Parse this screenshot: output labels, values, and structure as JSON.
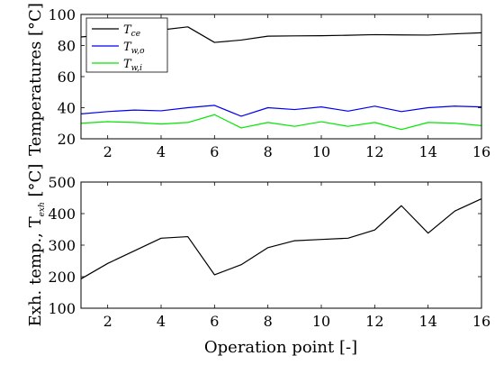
{
  "chart_data": [
    {
      "type": "line",
      "x": [
        1,
        2,
        3,
        4,
        5,
        6,
        7,
        8,
        9,
        10,
        11,
        12,
        13,
        14,
        15,
        16
      ],
      "xlim": [
        1,
        16
      ],
      "ylim": [
        20,
        100
      ],
      "xticks": [
        2,
        4,
        6,
        8,
        10,
        12,
        14,
        16
      ],
      "yticks": [
        20,
        40,
        60,
        80,
        100
      ],
      "ylabel": "Temperatures [°C]",
      "legend_position": "top-left",
      "grid": false,
      "series": [
        {
          "name": "T",
          "sub": "ce",
          "color": "#000000",
          "values": [
            85.5,
            87.0,
            88.5,
            90.0,
            92.0,
            82.0,
            83.5,
            86.0,
            86.2,
            86.3,
            86.6,
            87.0,
            86.8,
            86.7,
            87.5,
            88.2
          ]
        },
        {
          "name": "T",
          "sub": "w,o",
          "color": "#0000ee",
          "values": [
            36.0,
            37.5,
            38.5,
            38.0,
            40.0,
            41.5,
            34.5,
            40.0,
            38.8,
            40.5,
            37.8,
            41.0,
            37.5,
            40.0,
            41.0,
            40.5
          ]
        },
        {
          "name": "T",
          "sub": "w,i",
          "color": "#00e600",
          "values": [
            30.0,
            31.0,
            30.5,
            29.5,
            30.5,
            35.5,
            27.0,
            30.5,
            28.0,
            31.0,
            28.0,
            30.5,
            26.0,
            30.5,
            30.0,
            28.5
          ]
        }
      ]
    },
    {
      "type": "line",
      "x": [
        1,
        2,
        3,
        4,
        5,
        6,
        7,
        8,
        9,
        10,
        11,
        12,
        13,
        14,
        15,
        16
      ],
      "xlim": [
        1,
        16
      ],
      "ylim": [
        100,
        500
      ],
      "xticks": [
        2,
        4,
        6,
        8,
        10,
        12,
        14,
        16
      ],
      "yticks": [
        100,
        200,
        300,
        400,
        500
      ],
      "ylabel": "Exh. temp., T",
      "ylabel_sub": "exh",
      "ylabel_unit": " [°C]",
      "xlabel": "Operation point [-]",
      "grid": false,
      "series": [
        {
          "color": "#000000",
          "values": [
            193,
            242,
            282,
            322,
            327,
            206,
            238,
            292,
            314,
            318,
            322,
            348,
            425,
            338,
            408,
            447
          ]
        }
      ]
    }
  ]
}
